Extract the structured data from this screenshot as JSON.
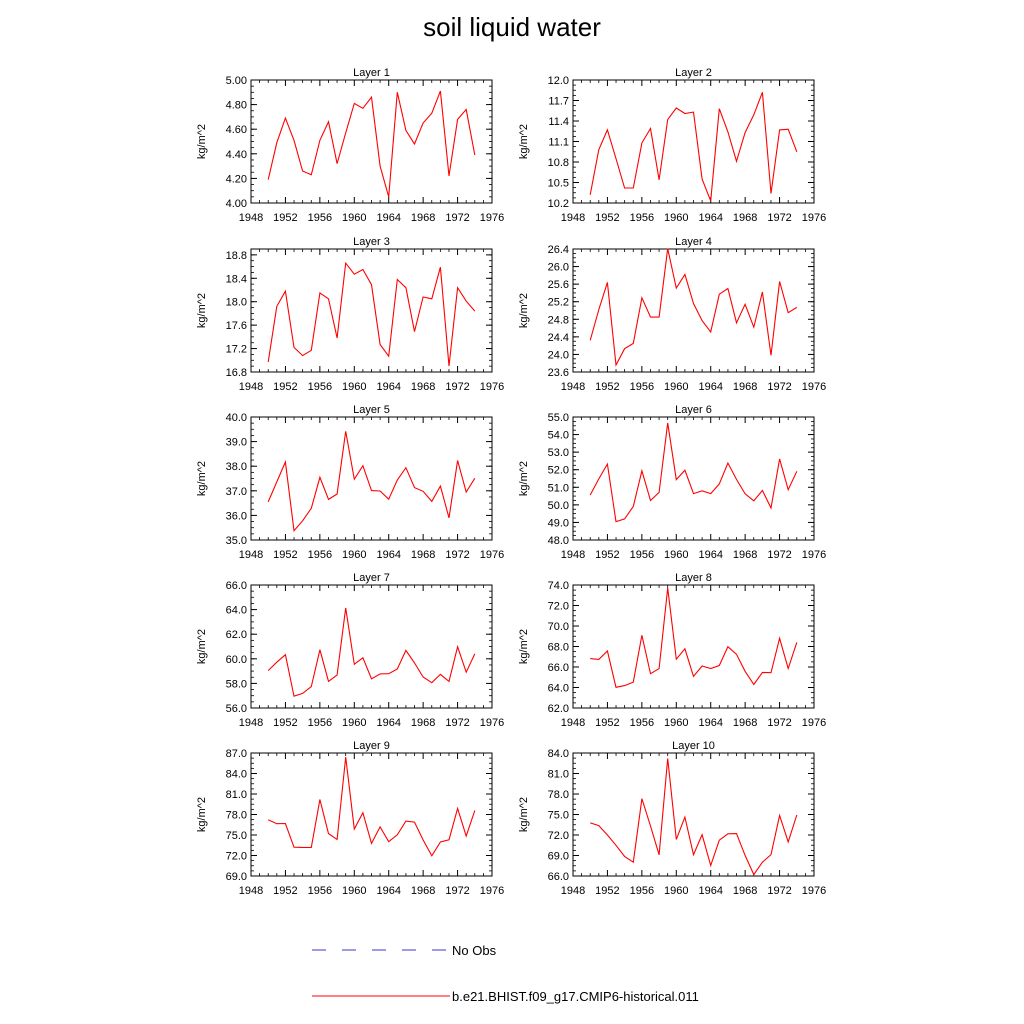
{
  "title": "soil liquid water",
  "legend": {
    "items": [
      {
        "label": "No Obs",
        "color": "#3a3acc",
        "style": "dashed"
      },
      {
        "label": "b.e21.BHIST.f09_g17.CMIP6-historical.011",
        "color": "#ff0000",
        "style": "solid"
      }
    ]
  },
  "chart_data": [
    {
      "type": "line",
      "title": "Layer 1",
      "ylabel": "kg/m^2",
      "x": [
        1950,
        1951,
        1952,
        1953,
        1954,
        1955,
        1956,
        1957,
        1958,
        1959,
        1960,
        1961,
        1962,
        1963,
        1964,
        1965,
        1966,
        1967,
        1968,
        1969,
        1970,
        1971,
        1972,
        1973,
        1974
      ],
      "xlim": [
        1948,
        1976
      ],
      "xticks": [
        "1948",
        "1952",
        "1956",
        "1960",
        "1964",
        "1968",
        "1972",
        "1976"
      ],
      "ylim": [
        4.0,
        5.0
      ],
      "yticks": [
        "4.00",
        "4.20",
        "4.40",
        "4.60",
        "4.80",
        "5.00"
      ],
      "series": [
        {
          "color": "#ff0000",
          "values": [
            4.19,
            4.49,
            4.69,
            4.51,
            4.26,
            4.23,
            4.51,
            4.66,
            4.32,
            4.57,
            4.81,
            4.77,
            4.86,
            4.3,
            4.05,
            4.9,
            4.59,
            4.48,
            4.65,
            4.73,
            4.91,
            4.22,
            4.68,
            4.76,
            4.39
          ]
        }
      ]
    },
    {
      "type": "line",
      "title": "Layer 2",
      "ylabel": "kg/m^2",
      "x": [
        1950,
        1951,
        1952,
        1953,
        1954,
        1955,
        1956,
        1957,
        1958,
        1959,
        1960,
        1961,
        1962,
        1963,
        1964,
        1965,
        1966,
        1967,
        1968,
        1969,
        1970,
        1971,
        1972,
        1973,
        1974
      ],
      "xlim": [
        1948,
        1976
      ],
      "xticks": [
        "1948",
        "1952",
        "1956",
        "1960",
        "1964",
        "1968",
        "1972",
        "1976"
      ],
      "ylim": [
        10.2,
        12.0
      ],
      "yticks": [
        "10.2",
        "10.5",
        "10.8",
        "11.1",
        "11.4",
        "11.7",
        "12.0"
      ],
      "series": [
        {
          "color": "#ff0000",
          "values": [
            10.32,
            10.98,
            11.27,
            10.85,
            10.42,
            10.42,
            11.08,
            11.29,
            10.54,
            11.42,
            11.59,
            11.51,
            11.53,
            10.55,
            10.23,
            11.58,
            11.24,
            10.81,
            11.23,
            11.49,
            11.82,
            10.34,
            11.27,
            11.28,
            10.95
          ]
        }
      ]
    },
    {
      "type": "line",
      "title": "Layer 3",
      "ylabel": "kg/m^2",
      "x": [
        1950,
        1951,
        1952,
        1953,
        1954,
        1955,
        1956,
        1957,
        1958,
        1959,
        1960,
        1961,
        1962,
        1963,
        1964,
        1965,
        1966,
        1967,
        1968,
        1969,
        1970,
        1971,
        1972,
        1973,
        1974
      ],
      "xlim": [
        1948,
        1976
      ],
      "xticks": [
        "1948",
        "1952",
        "1956",
        "1960",
        "1964",
        "1968",
        "1972",
        "1976"
      ],
      "ylim": [
        16.8,
        18.9
      ],
      "yticks": [
        "16.8",
        "17.2",
        "17.6",
        "18.0",
        "18.4",
        "18.8"
      ],
      "series": [
        {
          "color": "#ff0000",
          "values": [
            16.97,
            17.92,
            18.18,
            17.22,
            17.08,
            17.17,
            18.15,
            18.05,
            17.38,
            18.66,
            18.47,
            18.55,
            18.29,
            17.27,
            17.07,
            18.38,
            18.24,
            17.49,
            18.08,
            18.05,
            18.59,
            16.9,
            18.24,
            18.01,
            17.84
          ]
        }
      ]
    },
    {
      "type": "line",
      "title": "Layer 4",
      "ylabel": "kg/m^2",
      "x": [
        1950,
        1951,
        1952,
        1953,
        1954,
        1955,
        1956,
        1957,
        1958,
        1959,
        1960,
        1961,
        1962,
        1963,
        1964,
        1965,
        1966,
        1967,
        1968,
        1969,
        1970,
        1971,
        1972,
        1973,
        1974
      ],
      "xlim": [
        1948,
        1976
      ],
      "xticks": [
        "1948",
        "1952",
        "1956",
        "1960",
        "1964",
        "1968",
        "1972",
        "1976"
      ],
      "ylim": [
        23.6,
        26.4
      ],
      "yticks": [
        "23.6",
        "24.0",
        "24.4",
        "24.8",
        "25.2",
        "25.6",
        "26.0",
        "26.4"
      ],
      "series": [
        {
          "color": "#ff0000",
          "values": [
            24.32,
            25.02,
            25.64,
            23.76,
            24.13,
            24.25,
            25.29,
            24.85,
            24.85,
            26.41,
            25.51,
            25.82,
            25.16,
            24.77,
            24.51,
            25.37,
            25.5,
            24.72,
            25.14,
            24.62,
            25.42,
            23.98,
            25.66,
            24.95,
            25.07
          ]
        }
      ]
    },
    {
      "type": "line",
      "title": "Layer 5",
      "ylabel": "kg/m^2",
      "x": [
        1950,
        1951,
        1952,
        1953,
        1954,
        1955,
        1956,
        1957,
        1958,
        1959,
        1960,
        1961,
        1962,
        1963,
        1964,
        1965,
        1966,
        1967,
        1968,
        1969,
        1970,
        1971,
        1972,
        1973,
        1974
      ],
      "xlim": [
        1948,
        1976
      ],
      "xticks": [
        "1948",
        "1952",
        "1956",
        "1960",
        "1964",
        "1968",
        "1972",
        "1976"
      ],
      "ylim": [
        35.0,
        40.0
      ],
      "yticks": [
        "35.0",
        "36.0",
        "37.0",
        "38.0",
        "39.0",
        "40.0"
      ],
      "series": [
        {
          "color": "#ff0000",
          "values": [
            36.55,
            37.36,
            38.17,
            35.38,
            35.78,
            36.29,
            37.55,
            36.65,
            36.87,
            39.42,
            37.47,
            38.02,
            37.01,
            36.99,
            36.66,
            37.44,
            37.94,
            37.13,
            36.98,
            36.57,
            37.19,
            35.9,
            38.23,
            36.95,
            37.51
          ]
        }
      ]
    },
    {
      "type": "line",
      "title": "Layer 6",
      "ylabel": "kg/m^2",
      "x": [
        1950,
        1951,
        1952,
        1953,
        1954,
        1955,
        1956,
        1957,
        1958,
        1959,
        1960,
        1961,
        1962,
        1963,
        1964,
        1965,
        1966,
        1967,
        1968,
        1969,
        1970,
        1971,
        1972,
        1973,
        1974
      ],
      "xlim": [
        1948,
        1976
      ],
      "xticks": [
        "1948",
        "1952",
        "1956",
        "1960",
        "1964",
        "1968",
        "1972",
        "1976"
      ],
      "ylim": [
        48.0,
        55.0
      ],
      "yticks": [
        "48.0",
        "49.0",
        "50.0",
        "51.0",
        "52.0",
        "53.0",
        "54.0",
        "55.0"
      ],
      "series": [
        {
          "color": "#ff0000",
          "values": [
            50.56,
            51.48,
            52.32,
            49.05,
            49.2,
            49.91,
            51.94,
            50.25,
            50.71,
            54.66,
            51.44,
            51.97,
            50.64,
            50.8,
            50.64,
            51.19,
            52.38,
            51.45,
            50.63,
            50.23,
            50.82,
            49.82,
            52.61,
            50.86,
            51.91
          ]
        }
      ]
    },
    {
      "type": "line",
      "title": "Layer 7",
      "ylabel": "kg/m^2",
      "x": [
        1950,
        1951,
        1952,
        1953,
        1954,
        1955,
        1956,
        1957,
        1958,
        1959,
        1960,
        1961,
        1962,
        1963,
        1964,
        1965,
        1966,
        1967,
        1968,
        1969,
        1970,
        1971,
        1972,
        1973,
        1974
      ],
      "xlim": [
        1948,
        1976
      ],
      "xticks": [
        "1948",
        "1952",
        "1956",
        "1960",
        "1964",
        "1968",
        "1972",
        "1976"
      ],
      "ylim": [
        56.0,
        66.0
      ],
      "yticks": [
        "56.0",
        "58.0",
        "60.0",
        "62.0",
        "64.0",
        "66.0"
      ],
      "series": [
        {
          "color": "#ff0000",
          "values": [
            59.04,
            59.72,
            60.33,
            56.96,
            57.19,
            57.74,
            60.74,
            58.16,
            58.69,
            64.14,
            59.55,
            60.08,
            58.37,
            58.77,
            58.79,
            59.17,
            60.68,
            59.67,
            58.52,
            58.06,
            58.73,
            58.16,
            60.98,
            58.91,
            60.4
          ]
        }
      ]
    },
    {
      "type": "line",
      "title": "Layer 8",
      "ylabel": "kg/m^2",
      "x": [
        1950,
        1951,
        1952,
        1953,
        1954,
        1955,
        1956,
        1957,
        1958,
        1959,
        1960,
        1961,
        1962,
        1963,
        1964,
        1965,
        1966,
        1967,
        1968,
        1969,
        1970,
        1971,
        1972,
        1973,
        1974
      ],
      "xlim": [
        1948,
        1976
      ],
      "xticks": [
        "1948",
        "1952",
        "1956",
        "1960",
        "1964",
        "1968",
        "1972",
        "1976"
      ],
      "ylim": [
        62.0,
        74.0
      ],
      "yticks": [
        "62.0",
        "64.0",
        "66.0",
        "68.0",
        "70.0",
        "72.0",
        "74.0"
      ],
      "series": [
        {
          "color": "#ff0000",
          "values": [
            66.82,
            66.74,
            67.56,
            64.02,
            64.19,
            64.53,
            69.1,
            65.35,
            65.84,
            73.71,
            66.76,
            67.78,
            65.08,
            66.1,
            65.85,
            66.15,
            67.98,
            67.24,
            65.58,
            64.29,
            65.47,
            65.44,
            68.8,
            65.85,
            68.4
          ]
        }
      ]
    },
    {
      "type": "line",
      "title": "Layer 9",
      "ylabel": "kg/m^2",
      "x": [
        1950,
        1951,
        1952,
        1953,
        1954,
        1955,
        1956,
        1957,
        1958,
        1959,
        1960,
        1961,
        1962,
        1963,
        1964,
        1965,
        1966,
        1967,
        1968,
        1969,
        1970,
        1971,
        1972,
        1973,
        1974
      ],
      "xlim": [
        1948,
        1976
      ],
      "xticks": [
        "1948",
        "1952",
        "1956",
        "1960",
        "1964",
        "1968",
        "1972",
        "1976"
      ],
      "ylim": [
        69.0,
        87.0
      ],
      "yticks": [
        "69.0",
        "72.0",
        "75.0",
        "78.0",
        "81.0",
        "84.0",
        "87.0"
      ],
      "series": [
        {
          "color": "#ff0000",
          "values": [
            77.23,
            76.66,
            76.69,
            73.21,
            73.18,
            73.17,
            80.2,
            75.21,
            74.36,
            86.4,
            75.88,
            78.26,
            73.77,
            76.19,
            74.02,
            75.03,
            77.04,
            76.89,
            74.28,
            71.96,
            73.98,
            74.3,
            78.88,
            74.84,
            78.59
          ]
        }
      ]
    },
    {
      "type": "line",
      "title": "Layer 10",
      "ylabel": "kg/m^2",
      "x": [
        1950,
        1951,
        1952,
        1953,
        1954,
        1955,
        1956,
        1957,
        1958,
        1959,
        1960,
        1961,
        1962,
        1963,
        1964,
        1965,
        1966,
        1967,
        1968,
        1969,
        1970,
        1971,
        1972,
        1973,
        1974
      ],
      "xlim": [
        1948,
        1976
      ],
      "xticks": [
        "1948",
        "1952",
        "1956",
        "1960",
        "1964",
        "1968",
        "1972",
        "1976"
      ],
      "ylim": [
        66.0,
        84.0
      ],
      "yticks": [
        "66.0",
        "69.0",
        "72.0",
        "75.0",
        "78.0",
        "81.0",
        "84.0"
      ],
      "series": [
        {
          "color": "#ff0000",
          "values": [
            73.77,
            73.38,
            72.0,
            70.5,
            68.86,
            68.02,
            77.31,
            73.31,
            69.1,
            83.19,
            71.36,
            74.62,
            69.12,
            72.04,
            67.54,
            71.24,
            72.18,
            72.21,
            69.02,
            66.21,
            68.02,
            69.13,
            74.85,
            70.99,
            74.92
          ]
        }
      ]
    }
  ]
}
